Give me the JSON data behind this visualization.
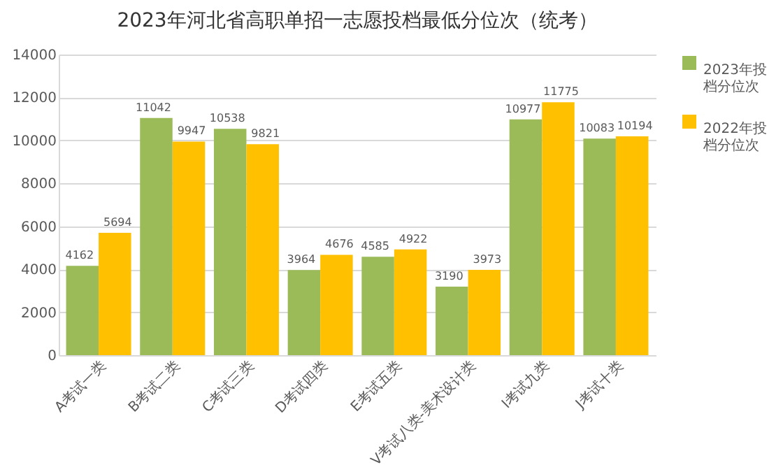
{
  "chart_data": {
    "type": "bar",
    "title": "2023年河北省高职单招一志愿投档最低分位次（统考）",
    "categories": [
      "A考试一类",
      "B考试二类",
      "C考试三类",
      "D考试四类",
      "E考试五类",
      "V考试八类-美术设计类",
      "I考试九类",
      "J考试十类"
    ],
    "series": [
      {
        "name": "2023年投档分位次",
        "color": "#9bbb59",
        "values": [
          4162,
          11042,
          10538,
          3964,
          4585,
          3190,
          10977,
          10083
        ]
      },
      {
        "name": "2022年投档分位次",
        "color": "#ffc000",
        "values": [
          5694,
          9947,
          9821,
          4676,
          4922,
          3973,
          11775,
          10194
        ]
      }
    ],
    "ylim": [
      0,
      14000
    ],
    "yticks": [
      0,
      2000,
      4000,
      6000,
      8000,
      10000,
      12000,
      14000
    ],
    "grid": "y",
    "legend": "right",
    "data_labels": true
  }
}
